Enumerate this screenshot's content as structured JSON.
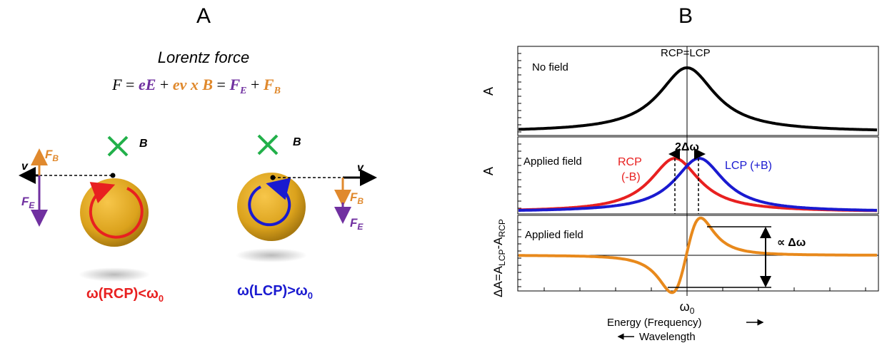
{
  "panel_a": {
    "label": "A",
    "title": "Lorentz force",
    "equation": {
      "f": "F",
      "eq1": " = ",
      "ee": "eE",
      "plus1": " + ",
      "evb": "ev x B",
      "eq2": " = ",
      "fe": "F",
      "fe_sub": "E",
      "plus2": " + ",
      "fb": "F",
      "fb_sub": "B"
    },
    "left": {
      "b": "B",
      "v": "v",
      "fb": "F",
      "fb_sub": "B",
      "fe": "F",
      "fe_sub": "E",
      "caption": "ω(RCP)<ω",
      "caption_sub": "0"
    },
    "right": {
      "b": "B",
      "v": "v",
      "fb": "F",
      "fb_sub": "B",
      "fe": "F",
      "fe_sub": "E",
      "caption": "ω(LCP)>ω",
      "caption_sub": "0"
    }
  },
  "panel_b": {
    "label": "B",
    "top": {
      "y_label": "A",
      "note": "No field",
      "peak": "RCP=LCP"
    },
    "middle": {
      "y_label": "A",
      "note": "Applied field",
      "rcp": "RCP",
      "rcp_b": "(-B)",
      "lcp": "LCP (+B)",
      "split": "2Δω"
    },
    "bottom": {
      "y_label": "ΔA=A",
      "y_sub1": "LCP",
      "y_mid": "-A",
      "y_sub2": "RCP",
      "note": "Applied field",
      "amp": "∝ Δω"
    },
    "x_center": "ω",
    "x_center_sub": "0",
    "x_label": "Energy (Frequency)",
    "x_label2": "Wavelength"
  }
}
